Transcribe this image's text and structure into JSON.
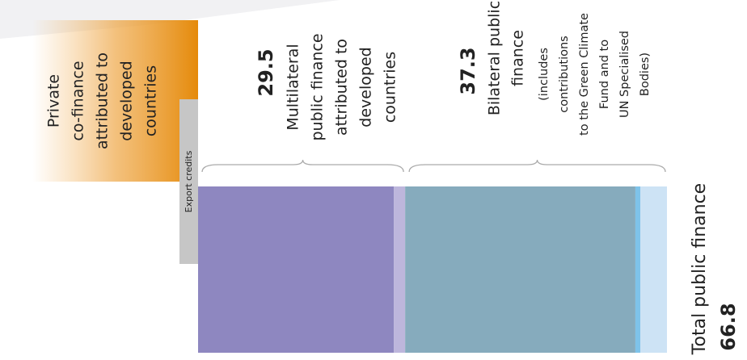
{
  "chart_data": {
    "type": "bar",
    "segments": {
      "values": [
        27.9,
        1.6,
        32.8,
        0.7,
        3.8
      ],
      "colors": [
        "#8e87c0",
        "#bdb6dc",
        "#86abbd",
        "#7ec3ea",
        "#cde3f5"
      ]
    },
    "groups": [
      {
        "value": 29.5,
        "label": [
          "Multilateral",
          "public finance",
          "attributed to",
          "developed",
          "countries"
        ]
      },
      {
        "value": 37.3,
        "label": [
          "Bilateral public",
          "finance"
        ],
        "detail": [
          "(includes",
          "contributions",
          "to the Green Climate",
          "Fund and to",
          "UN Specialised",
          "Bodies)"
        ]
      }
    ],
    "total": {
      "label": "Total public finance",
      "value": 66.8
    },
    "private_label": [
      "Private",
      "co-finance",
      "attributed to",
      "developed",
      "countries"
    ],
    "export_label": "Export credits"
  }
}
